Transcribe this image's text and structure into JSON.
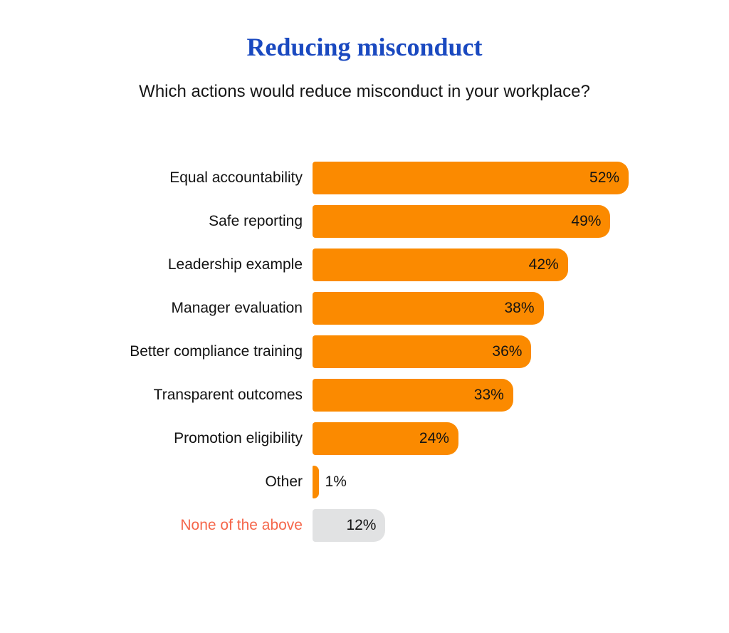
{
  "header": {
    "title": "Reducing misconduct",
    "subtitle": "Which actions would reduce misconduct in your workplace?"
  },
  "colors": {
    "title_blue": "#1A49C0",
    "bar_orange": "#FB8A00",
    "bar_gray": "#E1E2E3",
    "accent_coral": "#F5674B",
    "text_dark": "#121212",
    "background": "#FFFFFF"
  },
  "chart_data": {
    "type": "bar",
    "orientation": "horizontal",
    "title": "Reducing misconduct",
    "subtitle": "Which actions would reduce misconduct in your workplace?",
    "categories": [
      "Equal accountability",
      "Safe reporting",
      "Leadership example",
      "Manager evaluation",
      "Better compliance training",
      "Transparent outcomes",
      "Promotion eligibility",
      "Other",
      "None of the above"
    ],
    "values": [
      52,
      49,
      42,
      38,
      36,
      33,
      24,
      1,
      12
    ],
    "value_labels": [
      "52%",
      "49%",
      "42%",
      "38%",
      "36%",
      "33%",
      "24%",
      "1%",
      "12%"
    ],
    "xlim": [
      0,
      60
    ],
    "grid": false,
    "legend": false,
    "rows": [
      {
        "category": "Equal accountability",
        "value": 52,
        "value_label": "52%",
        "bar_color": "#FB8A00",
        "category_color": "#121212",
        "value_position": "inside"
      },
      {
        "category": "Safe reporting",
        "value": 49,
        "value_label": "49%",
        "bar_color": "#FB8A00",
        "category_color": "#121212",
        "value_position": "inside"
      },
      {
        "category": "Leadership example",
        "value": 42,
        "value_label": "42%",
        "bar_color": "#FB8A00",
        "category_color": "#121212",
        "value_position": "inside"
      },
      {
        "category": "Manager evaluation",
        "value": 38,
        "value_label": "38%",
        "bar_color": "#FB8A00",
        "category_color": "#121212",
        "value_position": "inside"
      },
      {
        "category": "Better compliance training",
        "value": 36,
        "value_label": "36%",
        "bar_color": "#FB8A00",
        "category_color": "#121212",
        "value_position": "inside"
      },
      {
        "category": "Transparent outcomes",
        "value": 33,
        "value_label": "33%",
        "bar_color": "#FB8A00",
        "category_color": "#121212",
        "value_position": "inside"
      },
      {
        "category": "Promotion eligibility",
        "value": 24,
        "value_label": "24%",
        "bar_color": "#FB8A00",
        "category_color": "#121212",
        "value_position": "inside"
      },
      {
        "category": "Other",
        "value": 1,
        "value_label": "1%",
        "bar_color": "#FB8A00",
        "category_color": "#121212",
        "value_position": "outside"
      },
      {
        "category": "None of the above",
        "value": 12,
        "value_label": "12%",
        "bar_color": "#E1E2E3",
        "category_color": "#F5674B",
        "value_position": "inside"
      }
    ]
  }
}
